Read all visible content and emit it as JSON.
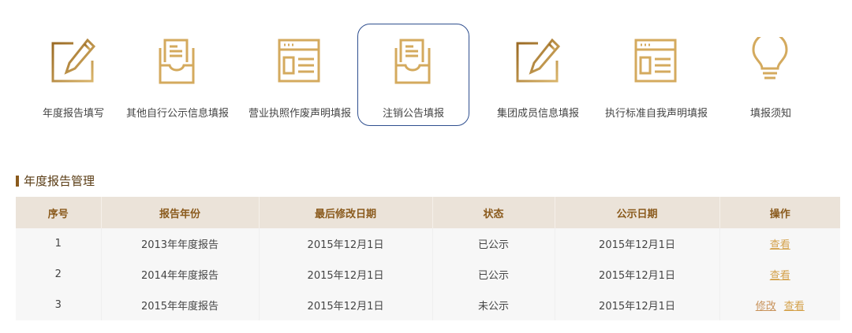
{
  "nav": {
    "items": [
      {
        "label": "年度报告填写",
        "icon": "edit-icon"
      },
      {
        "label": "其他自行公示信息填报",
        "icon": "inbox-document-icon"
      },
      {
        "label": "营业执照作废声明填报",
        "icon": "webpage-icon"
      },
      {
        "label": "注销公告填报",
        "icon": "inbox-document-icon",
        "active": true
      },
      {
        "label": "集团成员信息填报",
        "icon": "edit-icon"
      },
      {
        "label": "执行标准自我声明填报",
        "icon": "webpage-icon"
      },
      {
        "label": "填报须知",
        "icon": "lightbulb-icon"
      }
    ]
  },
  "section": {
    "title": "年度报告管理"
  },
  "table": {
    "headers": [
      "序号",
      "报告年份",
      "最后修改日期",
      "状态",
      "公示日期",
      "操作"
    ],
    "rows": [
      {
        "no": "1",
        "year": "2013年年度报告",
        "modified": "2015年12月1日",
        "status": "已公示",
        "published": "2015年12月1日",
        "edit": "",
        "view": "查看"
      },
      {
        "no": "2",
        "year": "2014年年度报告",
        "modified": "2015年12月1日",
        "status": "已公示",
        "published": "2015年12月1日",
        "edit": "",
        "view": "查看"
      },
      {
        "no": "3",
        "year": "2015年年度报告",
        "modified": "2015年12月1日",
        "status": "未公示",
        "published": "2015年12月1日",
        "edit": "修改",
        "view": "查看"
      }
    ]
  },
  "colors": {
    "gold": "#c9a05a",
    "brown": "#8a5a1c",
    "active_border": "#2f4f8f",
    "header_bg": "#ebe3d9"
  }
}
